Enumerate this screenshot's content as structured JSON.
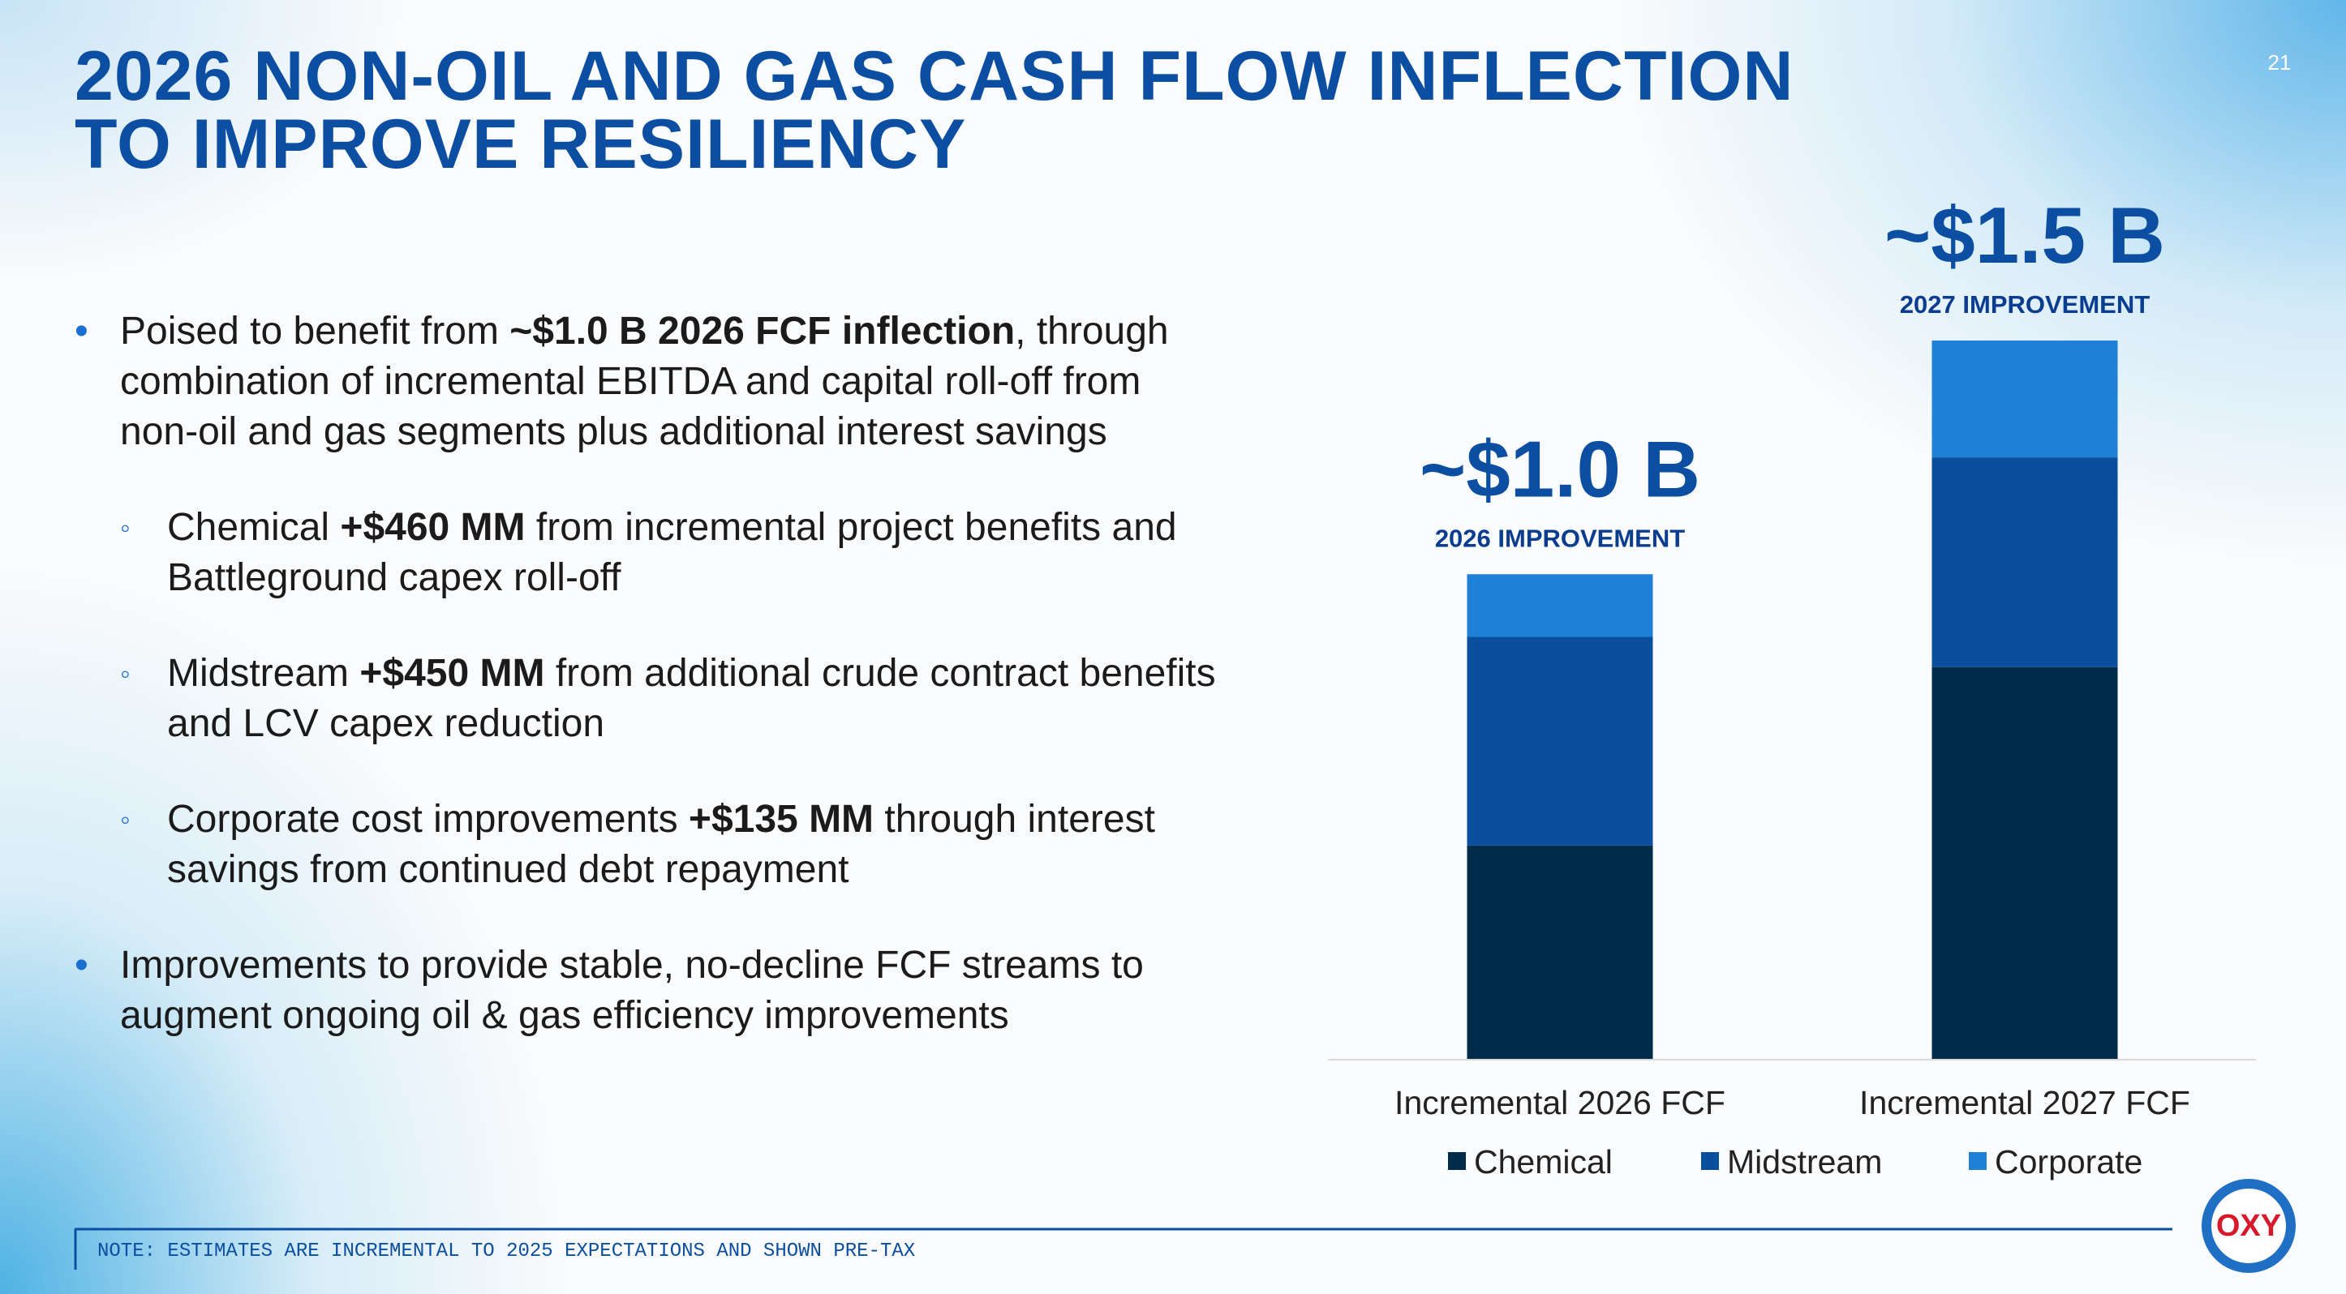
{
  "page_number": "21",
  "title_lines": [
    "2026 NON-OIL AND GAS CASH FLOW INFLECTION",
    "TO IMPROVE RESILIENCY"
  ],
  "bullets": [
    {
      "runs": [
        {
          "text": "Poised to benefit from "
        },
        {
          "text": "~$1.0 B 2026 FCF inflection",
          "bold": true
        },
        {
          "text": ", through combination of incremental EBITDA and capital roll-off from non-oil and gas segments plus additional interest savings"
        }
      ],
      "children": [
        {
          "runs": [
            {
              "text": "Chemical "
            },
            {
              "text": "+$460 MM",
              "bold": true
            },
            {
              "text": " from incremental project benefits and Battleground capex roll-off"
            }
          ]
        },
        {
          "runs": [
            {
              "text": "Midstream "
            },
            {
              "text": "+$450 MM",
              "bold": true
            },
            {
              "text": " from additional crude contract benefits and LCV capex reduction"
            }
          ]
        },
        {
          "runs": [
            {
              "text": "Corporate cost improvements "
            },
            {
              "text": "+$135 MM",
              "bold": true
            },
            {
              "text": " through interest savings from continued debt repayment"
            }
          ]
        }
      ]
    },
    {
      "runs": [
        {
          "text": "Improvements to provide stable, no-decline FCF streams to augment ongoing oil & gas efficiency improvements"
        }
      ]
    }
  ],
  "chart_data": {
    "type": "stacked_bar",
    "categories": [
      "Incremental 2026 FCF",
      "Incremental 2027 FCF"
    ],
    "series": [
      {
        "name": "Chemical",
        "color": "#002b49",
        "values": [
          460,
          845
        ]
      },
      {
        "name": "Midstream",
        "color": "#0a4f9c",
        "values": [
          450,
          452
        ]
      },
      {
        "name": "Corporate",
        "color": "#1f80d8",
        "values": [
          135,
          252
        ]
      }
    ],
    "annotations": [
      {
        "text": "~$1.0 B",
        "caption": "2026 IMPROVEMENT"
      },
      {
        "text": "~$1.5 B",
        "caption": "2027 IMPROVEMENT"
      }
    ]
  },
  "note": "NOTE: ESTIMATES ARE INCREMENTAL TO 2025 EXPECTATIONS AND SHOWN PRE-TAX",
  "logo": "OXY"
}
